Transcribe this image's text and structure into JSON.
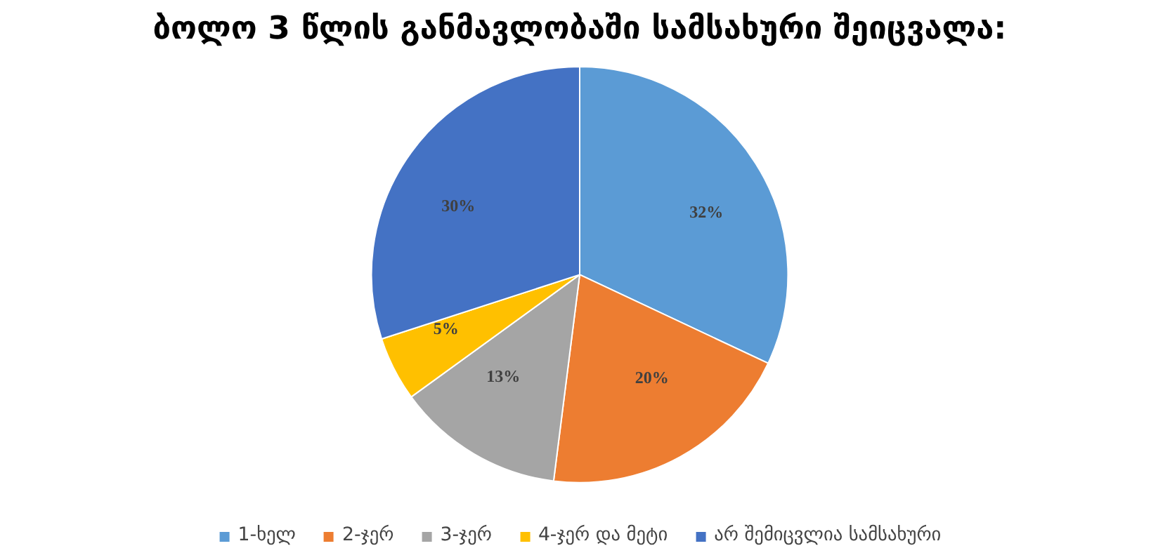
{
  "chart_data": {
    "type": "pie",
    "title": "ბოლო 3 წლის განმავლობაში სამსახური შეიცვალა:",
    "categories": [
      "1-ხელ",
      "2-ჯერ",
      "3-ჯერ",
      "4-ჯერ და მეტი",
      "არ შემიცვლია სამსახური"
    ],
    "values": [
      32,
      20,
      13,
      5,
      30
    ],
    "colors": [
      "#5b9bd5",
      "#ed7d31",
      "#a5a5a5",
      "#ffc000",
      "#4472c4"
    ],
    "value_labels": [
      "32%",
      "20%",
      "13%",
      "5%",
      "30%"
    ],
    "legend": "bottom"
  }
}
